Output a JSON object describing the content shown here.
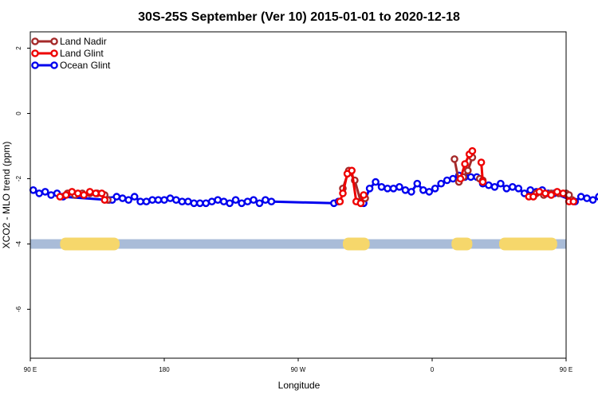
{
  "chart_data": {
    "type": "line",
    "title": "30S-25S September (Ver 10)   2015-01-01 to 2020-12-18",
    "xlabel": "Longitude",
    "ylabel": "XCO2 - MLO trend (ppm)",
    "xlim": [
      90,
      450
    ],
    "ylim": [
      -7.5,
      2.5
    ],
    "x_ticks": [
      {
        "value": 90,
        "label": "90 E"
      },
      {
        "value": 180,
        "label": "180"
      },
      {
        "value": 270,
        "label": "90 W"
      },
      {
        "value": 360,
        "label": "0"
      },
      {
        "value": 450,
        "label": "90 E"
      },
      {
        "value": 540,
        "label": "180"
      }
    ],
    "y_ticks": [
      {
        "value": -6,
        "label": "-6"
      },
      {
        "value": -4,
        "label": "-4"
      },
      {
        "value": -2,
        "label": "-2"
      },
      {
        "value": 0,
        "label": "0"
      },
      {
        "value": 2,
        "label": "2"
      }
    ],
    "legend_position": "top-left",
    "grid": false,
    "series": [
      {
        "name": "Land Nadir",
        "color": "#a52a2a",
        "segments": [
          [
            [
              115,
              -2.45
            ],
            [
              120,
              -2.5
            ],
            [
              125,
              -2.45
            ],
            [
              130,
              -2.45
            ],
            [
              135,
              -2.45
            ],
            [
              140,
              -2.5
            ],
            [
              142,
              -2.65
            ]
          ],
          [
            [
              300,
              -2.3
            ],
            [
              304,
              -1.75
            ],
            [
              308,
              -2.05
            ],
            [
              312,
              -2.7
            ],
            [
              315,
              -2.6
            ]
          ],
          [
            [
              375,
              -1.4
            ],
            [
              378,
              -2.1
            ],
            [
              381,
              -1.95
            ],
            [
              384,
              -1.75
            ],
            [
              387,
              -1.35
            ]
          ],
          [
            [
              392,
              -2.0
            ],
            [
              394,
              -2.05
            ]
          ],
          [
            [
              430,
              -2.45
            ],
            [
              435,
              -2.5
            ],
            [
              440,
              -2.45
            ],
            [
              445,
              -2.45
            ],
            [
              450,
              -2.45
            ],
            [
              452,
              -2.5
            ],
            [
              454,
              -2.65
            ]
          ]
        ]
      },
      {
        "name": "Land Glint",
        "color": "#ee0000",
        "segments": [
          [
            [
              110,
              -2.55
            ],
            [
              114,
              -2.5
            ],
            [
              118,
              -2.4
            ],
            [
              122,
              -2.45
            ],
            [
              126,
              -2.5
            ],
            [
              130,
              -2.4
            ],
            [
              134,
              -2.45
            ],
            [
              138,
              -2.45
            ],
            [
              140,
              -2.65
            ]
          ],
          [
            [
              298,
              -2.7
            ],
            [
              300,
              -2.45
            ],
            [
              303,
              -1.85
            ],
            [
              306,
              -1.75
            ],
            [
              309,
              -2.7
            ],
            [
              312,
              -2.75
            ],
            [
              314,
              -2.5
            ]
          ],
          [
            [
              379,
              -2.0
            ],
            [
              382,
              -1.55
            ],
            [
              385,
              -1.25
            ],
            [
              387,
              -1.15
            ]
          ],
          [
            [
              393,
              -1.5
            ],
            [
              394,
              -2.1
            ]
          ],
          [
            [
              425,
              -2.55
            ],
            [
              428,
              -2.55
            ],
            [
              432,
              -2.4
            ],
            [
              436,
              -2.45
            ],
            [
              440,
              -2.5
            ],
            [
              444,
              -2.4
            ],
            [
              448,
              -2.45
            ],
            [
              452,
              -2.7
            ],
            [
              455,
              -2.7
            ]
          ]
        ]
      },
      {
        "name": "Ocean Glint",
        "color": "#0000ee",
        "segments": [
          [
            [
              92,
              -2.35
            ],
            [
              96,
              -2.45
            ],
            [
              100,
              -2.4
            ],
            [
              104,
              -2.5
            ],
            [
              108,
              -2.45
            ],
            [
              112,
              -2.55
            ],
            [
              143,
              -2.65
            ],
            [
              145,
              -2.65
            ],
            [
              148,
              -2.55
            ],
            [
              152,
              -2.6
            ],
            [
              156,
              -2.65
            ],
            [
              160,
              -2.55
            ],
            [
              164,
              -2.7
            ],
            [
              168,
              -2.7
            ],
            [
              172,
              -2.65
            ],
            [
              176,
              -2.65
            ],
            [
              180,
              -2.65
            ],
            [
              184,
              -2.6
            ],
            [
              188,
              -2.65
            ],
            [
              192,
              -2.7
            ],
            [
              196,
              -2.7
            ],
            [
              200,
              -2.75
            ],
            [
              204,
              -2.75
            ],
            [
              208,
              -2.75
            ],
            [
              212,
              -2.7
            ],
            [
              216,
              -2.65
            ],
            [
              220,
              -2.7
            ],
            [
              224,
              -2.75
            ],
            [
              228,
              -2.65
            ],
            [
              232,
              -2.75
            ],
            [
              236,
              -2.7
            ],
            [
              240,
              -2.65
            ],
            [
              244,
              -2.75
            ],
            [
              248,
              -2.65
            ],
            [
              252,
              -2.7
            ],
            [
              294,
              -2.75
            ],
            [
              297,
              -2.7
            ]
          ],
          [
            [
              314,
              -2.75
            ],
            [
              318,
              -2.3
            ],
            [
              322,
              -2.1
            ],
            [
              326,
              -2.25
            ],
            [
              330,
              -2.3
            ],
            [
              334,
              -2.3
            ],
            [
              338,
              -2.25
            ],
            [
              342,
              -2.35
            ],
            [
              346,
              -2.4
            ],
            [
              350,
              -2.15
            ],
            [
              354,
              -2.35
            ],
            [
              358,
              -2.4
            ],
            [
              362,
              -2.3
            ],
            [
              366,
              -2.15
            ],
            [
              370,
              -2.05
            ],
            [
              374,
              -2.0
            ],
            [
              378,
              -1.9
            ],
            [
              382,
              -1.95
            ],
            [
              386,
              -1.95
            ],
            [
              390,
              -1.95
            ],
            [
              394,
              -2.15
            ],
            [
              398,
              -2.2
            ],
            [
              402,
              -2.25
            ],
            [
              406,
              -2.15
            ],
            [
              410,
              -2.3
            ],
            [
              414,
              -2.25
            ],
            [
              418,
              -2.3
            ],
            [
              422,
              -2.45
            ],
            [
              426,
              -2.35
            ],
            [
              430,
              -2.4
            ],
            [
              434,
              -2.35
            ],
            [
              438,
              -2.45
            ],
            [
              442,
              -2.45
            ],
            [
              456,
              -2.7
            ],
            [
              460,
              -2.55
            ],
            [
              464,
              -2.6
            ],
            [
              468,
              -2.65
            ],
            [
              472,
              -2.55
            ],
            [
              476,
              -2.7
            ]
          ]
        ]
      }
    ],
    "land_ocean_bar": {
      "y": -4,
      "ocean_color": "#a9bcd8",
      "land_color": "#f6d76b",
      "land_ranges": [
        [
          110,
          150
        ],
        [
          300,
          318
        ],
        [
          373,
          387
        ],
        [
          405,
          444
        ]
      ]
    }
  }
}
